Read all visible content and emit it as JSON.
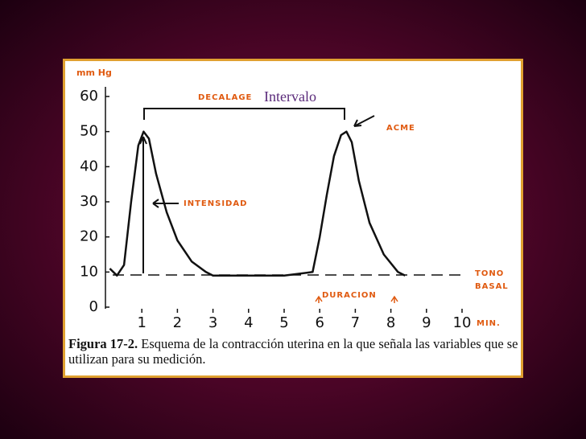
{
  "chart_data": {
    "type": "line",
    "y_label": "mm Hg",
    "x_label": "MIN.",
    "x": [
      0.1,
      0.3,
      0.5,
      0.7,
      0.9,
      1.05,
      1.2,
      1.4,
      1.7,
      2.0,
      2.4,
      2.8,
      3.0,
      4.0,
      5.0,
      5.8,
      6.0,
      6.2,
      6.4,
      6.6,
      6.75,
      6.9,
      7.1,
      7.4,
      7.8,
      8.2,
      8.4
    ],
    "values": [
      11,
      9,
      12,
      30,
      46,
      50,
      48,
      38,
      27,
      19,
      13,
      10,
      9,
      9,
      9,
      10,
      20,
      32,
      43,
      49,
      50,
      47,
      36,
      24,
      15,
      10,
      9
    ],
    "color": "#111111",
    "xlim": [
      0,
      10
    ],
    "xticks": [
      1,
      2,
      3,
      4,
      5,
      6,
      7,
      8,
      9,
      10
    ],
    "ylim": [
      0,
      60
    ],
    "yticks": [
      0,
      10,
      20,
      30,
      40,
      50,
      60
    ],
    "annotations": {
      "decalage": "DECALAGE",
      "intervalo": "Intervalo",
      "acme": "ACME",
      "intensidad": "INTENSIDAD",
      "tono": "TONO",
      "basal": "BASAL",
      "duracion": "DURACION"
    },
    "caption_label": "Figura 17-2.",
    "caption": "Esquema de la contracción uterina en la que señala las variables que se utilizan para su medición."
  }
}
